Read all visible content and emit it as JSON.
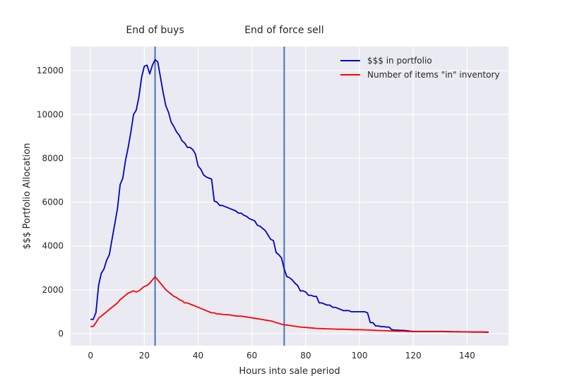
{
  "chart_data": {
    "type": "line",
    "xlabel": "Hours into sale period",
    "ylabel": "$$$ Portfolio Allocation",
    "xlim": [
      -7.4,
      155.4
    ],
    "ylim": [
      -550,
      13100
    ],
    "xticks": [
      0,
      20,
      40,
      60,
      80,
      100,
      120,
      140
    ],
    "yticks": [
      0,
      2000,
      4000,
      6000,
      8000,
      10000,
      12000
    ],
    "grid": true,
    "background": "#eaeaf2",
    "legend_position": "top-right",
    "vlines": [
      {
        "x": 24,
        "label": "End of buys",
        "color": "#4c72b0"
      },
      {
        "x": 72,
        "label": "End of force sell",
        "color": "#4c72b0"
      }
    ],
    "series": [
      {
        "name": "$$$ in portfolio",
        "color": "#0000cc",
        "points": [
          [
            0,
            650
          ],
          [
            1,
            650
          ],
          [
            2,
            950
          ],
          [
            3,
            2200
          ],
          [
            4,
            2750
          ],
          [
            5,
            2950
          ],
          [
            6,
            3350
          ],
          [
            7,
            3600
          ],
          [
            8,
            4300
          ],
          [
            9,
            5000
          ],
          [
            10,
            5700
          ],
          [
            11,
            6800
          ],
          [
            12,
            7100
          ],
          [
            13,
            7900
          ],
          [
            14,
            8500
          ],
          [
            15,
            9200
          ],
          [
            16,
            10000
          ],
          [
            17,
            10200
          ],
          [
            18,
            10800
          ],
          [
            19,
            11700
          ],
          [
            20,
            12200
          ],
          [
            21,
            12250
          ],
          [
            22,
            11850
          ],
          [
            23,
            12250
          ],
          [
            24,
            12500
          ],
          [
            25,
            12400
          ],
          [
            26,
            11700
          ],
          [
            27,
            11000
          ],
          [
            28,
            10400
          ],
          [
            29,
            10100
          ],
          [
            30,
            9650
          ],
          [
            31,
            9450
          ],
          [
            32,
            9200
          ],
          [
            33,
            9050
          ],
          [
            34,
            8800
          ],
          [
            35,
            8700
          ],
          [
            36,
            8500
          ],
          [
            37,
            8500
          ],
          [
            38,
            8400
          ],
          [
            39,
            8200
          ],
          [
            40,
            7650
          ],
          [
            41,
            7500
          ],
          [
            42,
            7250
          ],
          [
            43,
            7150
          ],
          [
            44,
            7100
          ],
          [
            45,
            7050
          ],
          [
            46,
            6050
          ],
          [
            47,
            6000
          ],
          [
            48,
            5850
          ],
          [
            49,
            5850
          ],
          [
            50,
            5800
          ],
          [
            51,
            5750
          ],
          [
            52,
            5700
          ],
          [
            53,
            5650
          ],
          [
            54,
            5600
          ],
          [
            55,
            5500
          ],
          [
            56,
            5500
          ],
          [
            57,
            5400
          ],
          [
            58,
            5350
          ],
          [
            59,
            5250
          ],
          [
            60,
            5200
          ],
          [
            61,
            5150
          ],
          [
            62,
            4950
          ],
          [
            63,
            4900
          ],
          [
            64,
            4800
          ],
          [
            65,
            4700
          ],
          [
            66,
            4500
          ],
          [
            67,
            4300
          ],
          [
            68,
            4250
          ],
          [
            69,
            3700
          ],
          [
            70,
            3600
          ],
          [
            71,
            3450
          ],
          [
            72,
            2950
          ],
          [
            73,
            2600
          ],
          [
            74,
            2550
          ],
          [
            75,
            2450
          ],
          [
            76,
            2300
          ],
          [
            77,
            2200
          ],
          [
            78,
            1950
          ],
          [
            79,
            1950
          ],
          [
            80,
            1900
          ],
          [
            81,
            1750
          ],
          [
            82,
            1750
          ],
          [
            83,
            1700
          ],
          [
            84,
            1700
          ],
          [
            85,
            1400
          ],
          [
            86,
            1400
          ],
          [
            87,
            1350
          ],
          [
            88,
            1300
          ],
          [
            89,
            1300
          ],
          [
            90,
            1200
          ],
          [
            91,
            1200
          ],
          [
            92,
            1150
          ],
          [
            93,
            1100
          ],
          [
            94,
            1050
          ],
          [
            95,
            1050
          ],
          [
            96,
            1050
          ],
          [
            97,
            1000
          ],
          [
            98,
            1000
          ],
          [
            99,
            1000
          ],
          [
            100,
            1000
          ],
          [
            101,
            1000
          ],
          [
            102,
            1000
          ],
          [
            103,
            950
          ],
          [
            104,
            500
          ],
          [
            105,
            500
          ],
          [
            106,
            350
          ],
          [
            107,
            350
          ],
          [
            108,
            320
          ],
          [
            109,
            320
          ],
          [
            110,
            300
          ],
          [
            111,
            300
          ],
          [
            112,
            180
          ],
          [
            113,
            160
          ],
          [
            114,
            160
          ],
          [
            115,
            150
          ],
          [
            116,
            150
          ],
          [
            117,
            140
          ],
          [
            118,
            130
          ],
          [
            119,
            110
          ],
          [
            120,
            100
          ],
          [
            121,
            100
          ],
          [
            122,
            100
          ],
          [
            124,
            100
          ],
          [
            126,
            100
          ],
          [
            128,
            100
          ],
          [
            130,
            100
          ],
          [
            132,
            100
          ],
          [
            134,
            90
          ],
          [
            136,
            90
          ],
          [
            138,
            80
          ],
          [
            140,
            80
          ],
          [
            142,
            70
          ],
          [
            144,
            70
          ],
          [
            146,
            70
          ],
          [
            148,
            60
          ]
        ]
      },
      {
        "name": "Number of items \"in\" inventory",
        "color": "#ff0000",
        "points": [
          [
            0,
            330
          ],
          [
            1,
            330
          ],
          [
            2,
            500
          ],
          [
            3,
            700
          ],
          [
            4,
            800
          ],
          [
            5,
            900
          ],
          [
            6,
            1000
          ],
          [
            7,
            1100
          ],
          [
            8,
            1200
          ],
          [
            9,
            1300
          ],
          [
            10,
            1400
          ],
          [
            11,
            1550
          ],
          [
            12,
            1650
          ],
          [
            13,
            1750
          ],
          [
            14,
            1850
          ],
          [
            15,
            1900
          ],
          [
            16,
            1950
          ],
          [
            17,
            1900
          ],
          [
            18,
            1950
          ],
          [
            19,
            2050
          ],
          [
            20,
            2150
          ],
          [
            21,
            2200
          ],
          [
            22,
            2300
          ],
          [
            23,
            2450
          ],
          [
            24,
            2600
          ],
          [
            25,
            2450
          ],
          [
            26,
            2300
          ],
          [
            27,
            2150
          ],
          [
            28,
            2000
          ],
          [
            29,
            1900
          ],
          [
            30,
            1800
          ],
          [
            31,
            1700
          ],
          [
            32,
            1650
          ],
          [
            33,
            1550
          ],
          [
            34,
            1500
          ],
          [
            35,
            1400
          ],
          [
            36,
            1400
          ],
          [
            37,
            1350
          ],
          [
            38,
            1300
          ],
          [
            39,
            1250
          ],
          [
            40,
            1200
          ],
          [
            41,
            1150
          ],
          [
            42,
            1100
          ],
          [
            43,
            1050
          ],
          [
            44,
            1000
          ],
          [
            45,
            950
          ],
          [
            46,
            950
          ],
          [
            47,
            900
          ],
          [
            48,
            900
          ],
          [
            49,
            880
          ],
          [
            50,
            870
          ],
          [
            51,
            860
          ],
          [
            52,
            850
          ],
          [
            53,
            820
          ],
          [
            54,
            810
          ],
          [
            55,
            800
          ],
          [
            56,
            800
          ],
          [
            57,
            780
          ],
          [
            58,
            760
          ],
          [
            59,
            740
          ],
          [
            60,
            720
          ],
          [
            61,
            700
          ],
          [
            62,
            680
          ],
          [
            63,
            660
          ],
          [
            64,
            640
          ],
          [
            65,
            620
          ],
          [
            66,
            600
          ],
          [
            67,
            580
          ],
          [
            68,
            550
          ],
          [
            69,
            500
          ],
          [
            70,
            470
          ],
          [
            71,
            430
          ],
          [
            72,
            400
          ],
          [
            73,
            390
          ],
          [
            74,
            370
          ],
          [
            75,
            350
          ],
          [
            76,
            340
          ],
          [
            77,
            320
          ],
          [
            78,
            300
          ],
          [
            79,
            290
          ],
          [
            80,
            280
          ],
          [
            82,
            260
          ],
          [
            84,
            240
          ],
          [
            86,
            230
          ],
          [
            88,
            220
          ],
          [
            90,
            210
          ],
          [
            92,
            200
          ],
          [
            94,
            200
          ],
          [
            96,
            190
          ],
          [
            98,
            180
          ],
          [
            100,
            180
          ],
          [
            102,
            170
          ],
          [
            104,
            160
          ],
          [
            106,
            150
          ],
          [
            108,
            140
          ],
          [
            110,
            130
          ],
          [
            112,
            120
          ],
          [
            114,
            110
          ],
          [
            116,
            110
          ],
          [
            118,
            100
          ],
          [
            120,
            90
          ],
          [
            122,
            90
          ],
          [
            124,
            90
          ],
          [
            126,
            90
          ],
          [
            128,
            90
          ],
          [
            130,
            90
          ],
          [
            132,
            90
          ],
          [
            134,
            80
          ],
          [
            136,
            80
          ],
          [
            138,
            80
          ],
          [
            140,
            80
          ],
          [
            142,
            70
          ],
          [
            144,
            70
          ],
          [
            146,
            70
          ],
          [
            148,
            70
          ]
        ]
      }
    ]
  }
}
